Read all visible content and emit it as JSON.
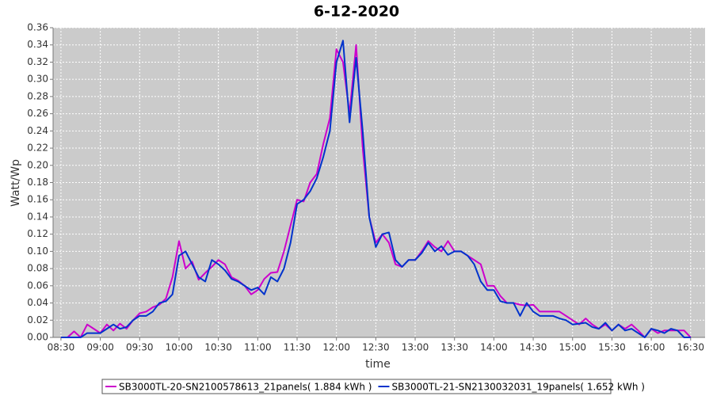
{
  "chart_data": {
    "type": "line",
    "title": "6-12-2020",
    "x_label": "time",
    "y_label": "Watt/Wp",
    "xlim": [
      "08:24",
      "16:41"
    ],
    "xticks": [
      "08:30",
      "09:00",
      "09:30",
      "10:00",
      "10:30",
      "11:00",
      "11:30",
      "12:00",
      "12:30",
      "13:00",
      "13:30",
      "14:00",
      "14:30",
      "15:00",
      "15:30",
      "16:00",
      "16:30"
    ],
    "ylim": [
      0,
      0.36
    ],
    "yticks": [
      {
        "value": 0,
        "label": "0.00"
      },
      0.02,
      0.04,
      0.06,
      0.08,
      {
        "value": 0.1,
        "label": "0.10"
      },
      0.12,
      0.14,
      0.16,
      0.18,
      {
        "value": 0.2,
        "label": "0.20"
      },
      0.22,
      0.24,
      0.26,
      0.28,
      {
        "value": 0.3,
        "label": "0.30"
      },
      0.32,
      0.34,
      0.36
    ],
    "grid": true,
    "legend": "bottom",
    "x": [
      "08:30",
      "08:35",
      "08:40",
      "08:45",
      "08:50",
      "08:55",
      "09:00",
      "09:05",
      "09:10",
      "09:15",
      "09:20",
      "09:25",
      "09:30",
      "09:35",
      "09:40",
      "09:45",
      "09:50",
      "09:55",
      "10:00",
      "10:05",
      "10:10",
      "10:15",
      "10:20",
      "10:25",
      "10:30",
      "10:35",
      "10:40",
      "10:45",
      "10:50",
      "10:55",
      "11:00",
      "11:05",
      "11:10",
      "11:15",
      "11:20",
      "11:25",
      "11:30",
      "11:35",
      "11:40",
      "11:45",
      "11:50",
      "11:55",
      "12:00",
      "12:05",
      "12:10",
      "12:15",
      "12:20",
      "12:25",
      "12:30",
      "12:35",
      "12:40",
      "12:45",
      "12:50",
      "12:55",
      "13:00",
      "13:05",
      "13:10",
      "13:15",
      "13:20",
      "13:25",
      "13:30",
      "13:35",
      "13:40",
      "13:45",
      "13:50",
      "13:55",
      "14:00",
      "14:05",
      "14:10",
      "14:15",
      "14:20",
      "14:25",
      "14:30",
      "14:35",
      "14:40",
      "14:45",
      "14:50",
      "14:55",
      "15:00",
      "15:05",
      "15:10",
      "15:15",
      "15:20",
      "15:25",
      "15:30",
      "15:35",
      "15:40",
      "15:45",
      "15:50",
      "15:55",
      "16:00",
      "16:05",
      "16:10",
      "16:15",
      "16:20",
      "16:25",
      "16:30"
    ],
    "series": [
      {
        "name": "SB3000TL-20-SN2100578613_21panels( 1.884 kWh )",
        "color": "#cc00cc",
        "values": [
          0,
          0,
          0.007,
          0,
          0.015,
          0.01,
          0.005,
          0.015,
          0.008,
          0.016,
          0.01,
          0.02,
          0.028,
          0.03,
          0.035,
          0.038,
          0.045,
          0.07,
          0.112,
          0.08,
          0.088,
          0.067,
          0.075,
          0.082,
          0.09,
          0.085,
          0.07,
          0.066,
          0.06,
          0.05,
          0.055,
          0.068,
          0.075,
          0.076,
          0.1,
          0.13,
          0.16,
          0.158,
          0.18,
          0.19,
          0.225,
          0.255,
          0.335,
          0.32,
          0.26,
          0.34,
          0.22,
          0.14,
          0.11,
          0.12,
          0.11,
          0.085,
          0.082,
          0.09,
          0.09,
          0.1,
          0.112,
          0.105,
          0.1,
          0.112,
          0.1,
          0.1,
          0.095,
          0.09,
          0.085,
          0.06,
          0.06,
          0.048,
          0.04,
          0.04,
          0.038,
          0.037,
          0.038,
          0.03,
          0.03,
          0.03,
          0.03,
          0.025,
          0.02,
          0.015,
          0.022,
          0.015,
          0.01,
          0.015,
          0.008,
          0.015,
          0.01,
          0.015,
          0.008,
          0,
          0.01,
          0.005,
          0.008,
          0.008,
          0.008,
          0.008,
          0
        ]
      },
      {
        "name": "SB3000TL-21-SN2130032031_19panels( 1.652 kWh )",
        "color": "#0033cc",
        "values": [
          0,
          0,
          0,
          0,
          0.005,
          0.005,
          0.005,
          0.01,
          0.015,
          0.01,
          0.012,
          0.02,
          0.025,
          0.025,
          0.03,
          0.04,
          0.042,
          0.05,
          0.095,
          0.1,
          0.085,
          0.07,
          0.065,
          0.09,
          0.085,
          0.078,
          0.068,
          0.065,
          0.06,
          0.055,
          0.058,
          0.05,
          0.07,
          0.065,
          0.08,
          0.11,
          0.155,
          0.16,
          0.17,
          0.185,
          0.21,
          0.24,
          0.32,
          0.345,
          0.25,
          0.325,
          0.24,
          0.14,
          0.105,
          0.12,
          0.122,
          0.09,
          0.082,
          0.09,
          0.09,
          0.098,
          0.11,
          0.1,
          0.106,
          0.096,
          0.1,
          0.1,
          0.095,
          0.085,
          0.065,
          0.055,
          0.055,
          0.042,
          0.04,
          0.04,
          0.025,
          0.04,
          0.03,
          0.025,
          0.025,
          0.025,
          0.022,
          0.02,
          0.015,
          0.016,
          0.017,
          0.012,
          0.01,
          0.017,
          0.008,
          0.015,
          0.008,
          0.01,
          0.005,
          0,
          0.01,
          0.008,
          0.005,
          0.01,
          0.008,
          0,
          0
        ]
      }
    ]
  }
}
